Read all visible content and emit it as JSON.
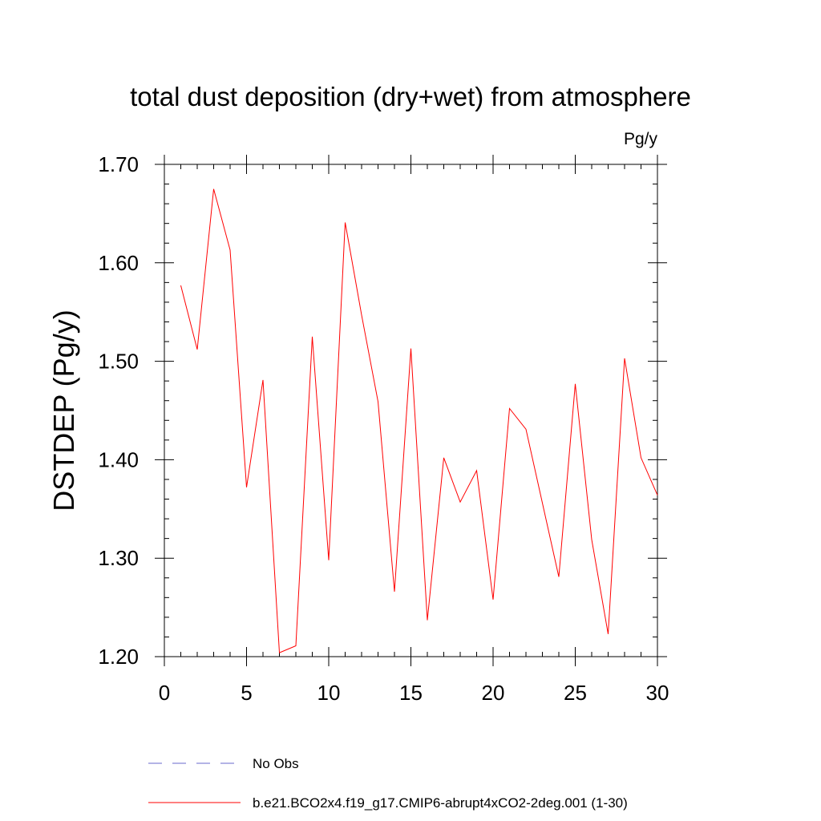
{
  "chart_data": {
    "type": "line",
    "title": "total dust deposition (dry+wet) from atmosphere",
    "units": "Pg/y",
    "ylabel": "DSTDEP  (Pg/y)",
    "xlabel": "",
    "xlim": [
      0,
      30
    ],
    "ylim": [
      1.2,
      1.7
    ],
    "x_ticks": [
      0,
      5,
      10,
      15,
      20,
      25,
      30
    ],
    "x_tick_labels": [
      "0",
      "5",
      "10",
      "15",
      "20",
      "25",
      "30"
    ],
    "y_ticks": [
      1.2,
      1.3,
      1.4,
      1.5,
      1.6,
      1.7
    ],
    "y_tick_labels": [
      "1.20",
      "1.30",
      "1.40",
      "1.50",
      "1.60",
      "1.70"
    ],
    "grid": false,
    "legend_position": "bottom",
    "series": [
      {
        "name": "b.e21.BCO2x4.f19_g17.CMIP6-abrupt4xCO2-2deg.001 (1-30)",
        "color": "#ff0000",
        "style": "solid",
        "x": [
          1,
          2,
          3,
          4,
          5,
          6,
          7,
          8,
          9,
          10,
          11,
          12,
          13,
          14,
          15,
          16,
          17,
          18,
          19,
          20,
          21,
          22,
          23,
          24,
          25,
          26,
          27,
          28,
          29,
          30
        ],
        "y": [
          1.577,
          1.512,
          1.675,
          1.613,
          1.372,
          1.481,
          1.204,
          1.211,
          1.525,
          1.298,
          1.641,
          1.547,
          1.459,
          1.266,
          1.513,
          1.237,
          1.402,
          1.357,
          1.389,
          1.258,
          1.452,
          1.431,
          1.356,
          1.281,
          1.477,
          1.319,
          1.223,
          1.503,
          1.402,
          1.364
        ]
      }
    ],
    "legend": [
      {
        "label": "No Obs",
        "color": "#6a6acd",
        "style": "dashed"
      },
      {
        "label": "b.e21.BCO2x4.f19_g17.CMIP6-abrupt4xCO2-2deg.001 (1-30)",
        "color": "#ff0000",
        "style": "solid"
      }
    ]
  }
}
